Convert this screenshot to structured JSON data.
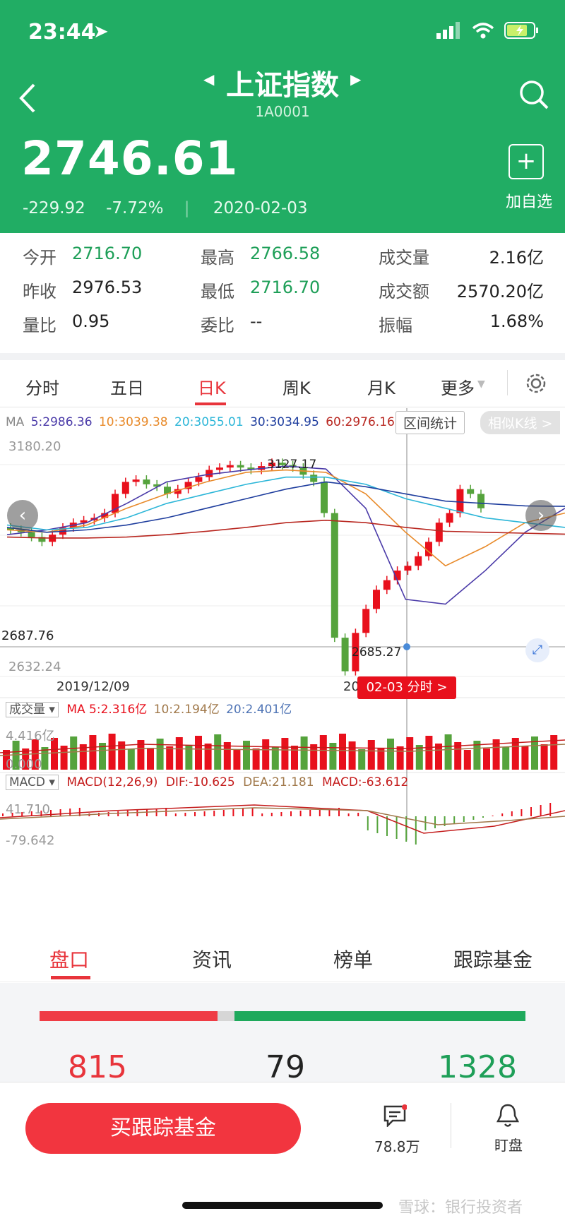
{
  "status_bar": {
    "time": "23:44"
  },
  "header": {
    "title": "上证指数",
    "code": "1A0001",
    "price": "2746.61",
    "change": "-229.92",
    "change_pct": "-7.72%",
    "date": "2020-02-03",
    "add_label": "加自选"
  },
  "stats": {
    "open_label": "今开",
    "open": "2716.70",
    "high_label": "最高",
    "high": "2766.58",
    "vol_label": "成交量",
    "vol": "2.16亿",
    "prev_label": "昨收",
    "prev": "2976.53",
    "low_label": "最低",
    "low": "2716.70",
    "amt_label": "成交额",
    "amt": "2570.20亿",
    "ratio_label": "量比",
    "ratio": "0.95",
    "entrust_label": "委比",
    "entrust": "--",
    "amp_label": "振幅",
    "amp": "1.68%"
  },
  "tabs": [
    "分时",
    "五日",
    "日K",
    "周K",
    "月K",
    "更多"
  ],
  "chart": {
    "ma_label": "MA",
    "ma5": "5:2986.36",
    "ma10": "10:3039.38",
    "ma20": "20:3055.01",
    "ma30": "30:3034.95",
    "ma60": "60:2976.16",
    "range_stat": "区间统计",
    "similar_k": "相似K线 >",
    "y_top": "3180.20",
    "y_ref": "2687.76",
    "y_bottom": "2632.24",
    "high_mark": "3127.17",
    "low_mark": "2685.27",
    "date_left": "2019/12/09",
    "date_cursor": "20",
    "cursor_badge": "02-03 分时 >",
    "vol_select": "成交量",
    "vol_ma": "MA",
    "vol_ma5": "5:2.316亿",
    "vol_ma10": "10:2.194亿",
    "vol_ma20": "20:2.401亿",
    "vol_top": "4.416亿",
    "vol_bottom": "0.000",
    "macd_select": "MACD",
    "macd_params": "MACD(12,26,9)",
    "dif": "DIF:-10.625",
    "dea": "DEA:21.181",
    "macd": "MACD:-63.612",
    "macd_top": "41.710",
    "macd_bottom": "-79.642",
    "colors": {
      "up": "#e8101c",
      "down": "#55a33c"
    }
  },
  "bottom_tabs": [
    "盘口",
    "资讯",
    "榜单",
    "跟踪基金"
  ],
  "breadth": {
    "up": "815",
    "flat": "79",
    "down": "1328"
  },
  "bottom": {
    "buy": "买跟踪基金",
    "comments": "78.8万",
    "watch": "盯盘",
    "watermark": "雪球：银行投资者"
  }
}
